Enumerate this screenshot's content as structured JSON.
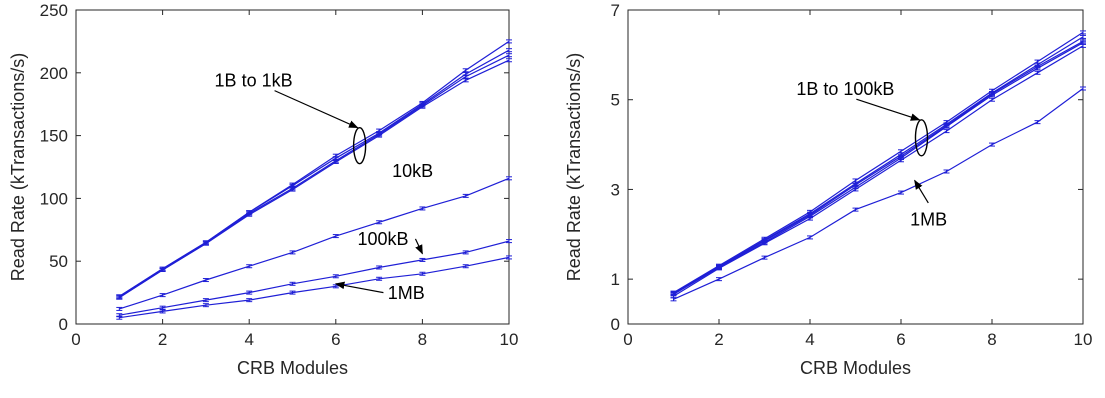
{
  "chart_data": [
    {
      "type": "line",
      "xlabel": "CRB Modules",
      "ylabel": "Read Rate (kTransactions/s)",
      "xlim": [
        0,
        10
      ],
      "ylim": [
        0,
        250
      ],
      "xticks": [
        0,
        2,
        4,
        6,
        8,
        10
      ],
      "yticks": [
        0,
        50,
        100,
        150,
        200,
        250
      ],
      "grid": false,
      "line_color": "#1f1fd6",
      "x": [
        1,
        2,
        3,
        4,
        5,
        6,
        7,
        8,
        9,
        10
      ],
      "series": [
        {
          "values": [
            22,
            44,
            65,
            89,
            111,
            134,
            154,
            176,
            202,
            225
          ]
        },
        {
          "values": [
            22,
            44,
            65,
            89,
            110,
            132,
            152,
            175,
            199,
            218
          ]
        },
        {
          "values": [
            21,
            43,
            64,
            88,
            108,
            130,
            151,
            174,
            197,
            214
          ]
        },
        {
          "values": [
            21,
            43,
            64,
            87,
            107,
            129,
            150,
            173,
            194,
            210
          ]
        },
        {
          "values": [
            12,
            23,
            35,
            46,
            57,
            70,
            81,
            92,
            102,
            116
          ]
        },
        {
          "values": [
            7,
            13,
            19,
            25,
            32,
            38,
            45,
            51,
            57,
            66
          ]
        },
        {
          "values": [
            5,
            10,
            15,
            19,
            25,
            30,
            36,
            40,
            46,
            53
          ]
        }
      ],
      "annotations": [
        {
          "text": "1B to 1kB",
          "label_x": 3.2,
          "label_y": 189,
          "ellipse_x": 6.55,
          "ellipse_y": 142,
          "arrow_to_x": 6.5,
          "arrow_to_y": 160
        },
        {
          "text": "10kB",
          "label_x": 7.3,
          "label_y": 117
        },
        {
          "text": "100kB",
          "label_x": 6.5,
          "label_y": 63,
          "arrow_to_x": 8.0,
          "arrow_to_y": 56
        },
        {
          "text": "1MB",
          "label_x": 7.2,
          "label_y": 20,
          "arrow_from_x": 7.1,
          "arrow_from_y": 25,
          "arrow_to_x": 6.0,
          "arrow_to_y": 32
        }
      ]
    },
    {
      "type": "line",
      "xlabel": "CRB Modules",
      "ylabel": "Read Rate (kTransactions/s)",
      "xlim": [
        0,
        10
      ],
      "ylim": [
        0,
        7
      ],
      "xticks": [
        0,
        2,
        4,
        6,
        8,
        10
      ],
      "yticks": [
        0,
        1,
        3,
        5,
        7
      ],
      "grid": false,
      "line_color": "#1f1fd6",
      "x": [
        1,
        2,
        3,
        4,
        5,
        6,
        7,
        8,
        9,
        10
      ],
      "series": [
        {
          "values": [
            0.7,
            1.3,
            1.9,
            2.5,
            3.2,
            3.85,
            4.5,
            5.2,
            5.85,
            6.5
          ]
        },
        {
          "values": [
            0.68,
            1.28,
            1.87,
            2.46,
            3.13,
            3.78,
            4.45,
            5.15,
            5.78,
            6.4
          ]
        },
        {
          "values": [
            0.67,
            1.27,
            1.85,
            2.43,
            3.1,
            3.74,
            4.42,
            5.13,
            5.74,
            6.3
          ]
        },
        {
          "values": [
            0.66,
            1.26,
            1.82,
            2.4,
            3.05,
            3.7,
            4.4,
            5.1,
            5.7,
            6.27
          ]
        },
        {
          "values": [
            0.62,
            1.24,
            1.8,
            2.35,
            3.0,
            3.65,
            4.3,
            5.0,
            5.6,
            6.2
          ]
        },
        {
          "values": [
            0.55,
            1.0,
            1.48,
            1.93,
            2.55,
            2.93,
            3.4,
            4.0,
            4.5,
            5.25
          ]
        }
      ],
      "annotations": [
        {
          "text": "1B to 100kB",
          "label_x": 3.7,
          "label_y": 5.1,
          "ellipse_x": 6.45,
          "ellipse_y": 4.15,
          "arrow_to_x": 6.3,
          "arrow_to_y": 4.6
        },
        {
          "text": "1MB",
          "label_x": 6.2,
          "label_y": 2.2,
          "arrow_from_x": 6.6,
          "arrow_from_y": 2.7,
          "arrow_to_x": 6.3,
          "arrow_to_y": 3.2
        }
      ]
    }
  ]
}
